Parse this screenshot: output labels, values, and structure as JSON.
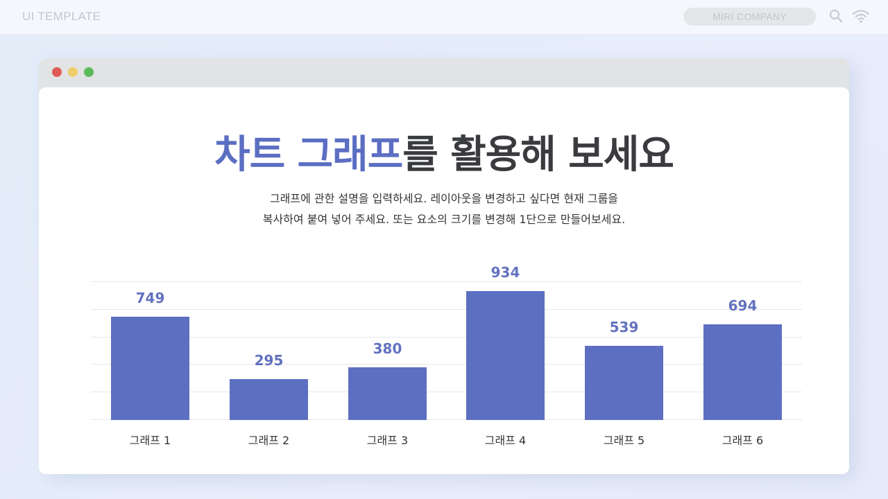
{
  "topbar": {
    "brand": "UI TEMPLATE",
    "company": "MIRI COMPANY",
    "icons": [
      "search-icon",
      "wifi-icon"
    ]
  },
  "window": {
    "controls": [
      {
        "name": "close",
        "color": "#e05a55"
      },
      {
        "name": "minimize",
        "color": "#f1cc6a"
      },
      {
        "name": "maximize",
        "color": "#5bbb5b"
      }
    ]
  },
  "slide": {
    "title_accent": "차트 그래프",
    "title_rest": "를 활용해 보세요",
    "description_line1": "그래프에 관한 설명을 입력하세요. 레이아웃을 변경하고 싶다면 현재 그룹을",
    "description_line2": "복사하여 붙여 넣어 주세요. 또는 요소의 크기를 변경해 1단으로 만들어보세요."
  },
  "colors": {
    "accent": "#5b6ec2",
    "bar": "#5d6fc1",
    "value_label": "#6272bf",
    "text": "#3a3b3f"
  },
  "chart_data": {
    "type": "bar",
    "title": "",
    "categories": [
      "그래프 1",
      "그래프 2",
      "그래프 3",
      "그래프 4",
      "그래프 5",
      "그래프 6"
    ],
    "values": [
      749,
      295,
      380,
      934,
      539,
      694
    ],
    "xlabel": "",
    "ylabel": "",
    "ylim": [
      0,
      1000
    ],
    "grid": true,
    "gridlines": 5,
    "data_labels": true,
    "legend": "none"
  }
}
